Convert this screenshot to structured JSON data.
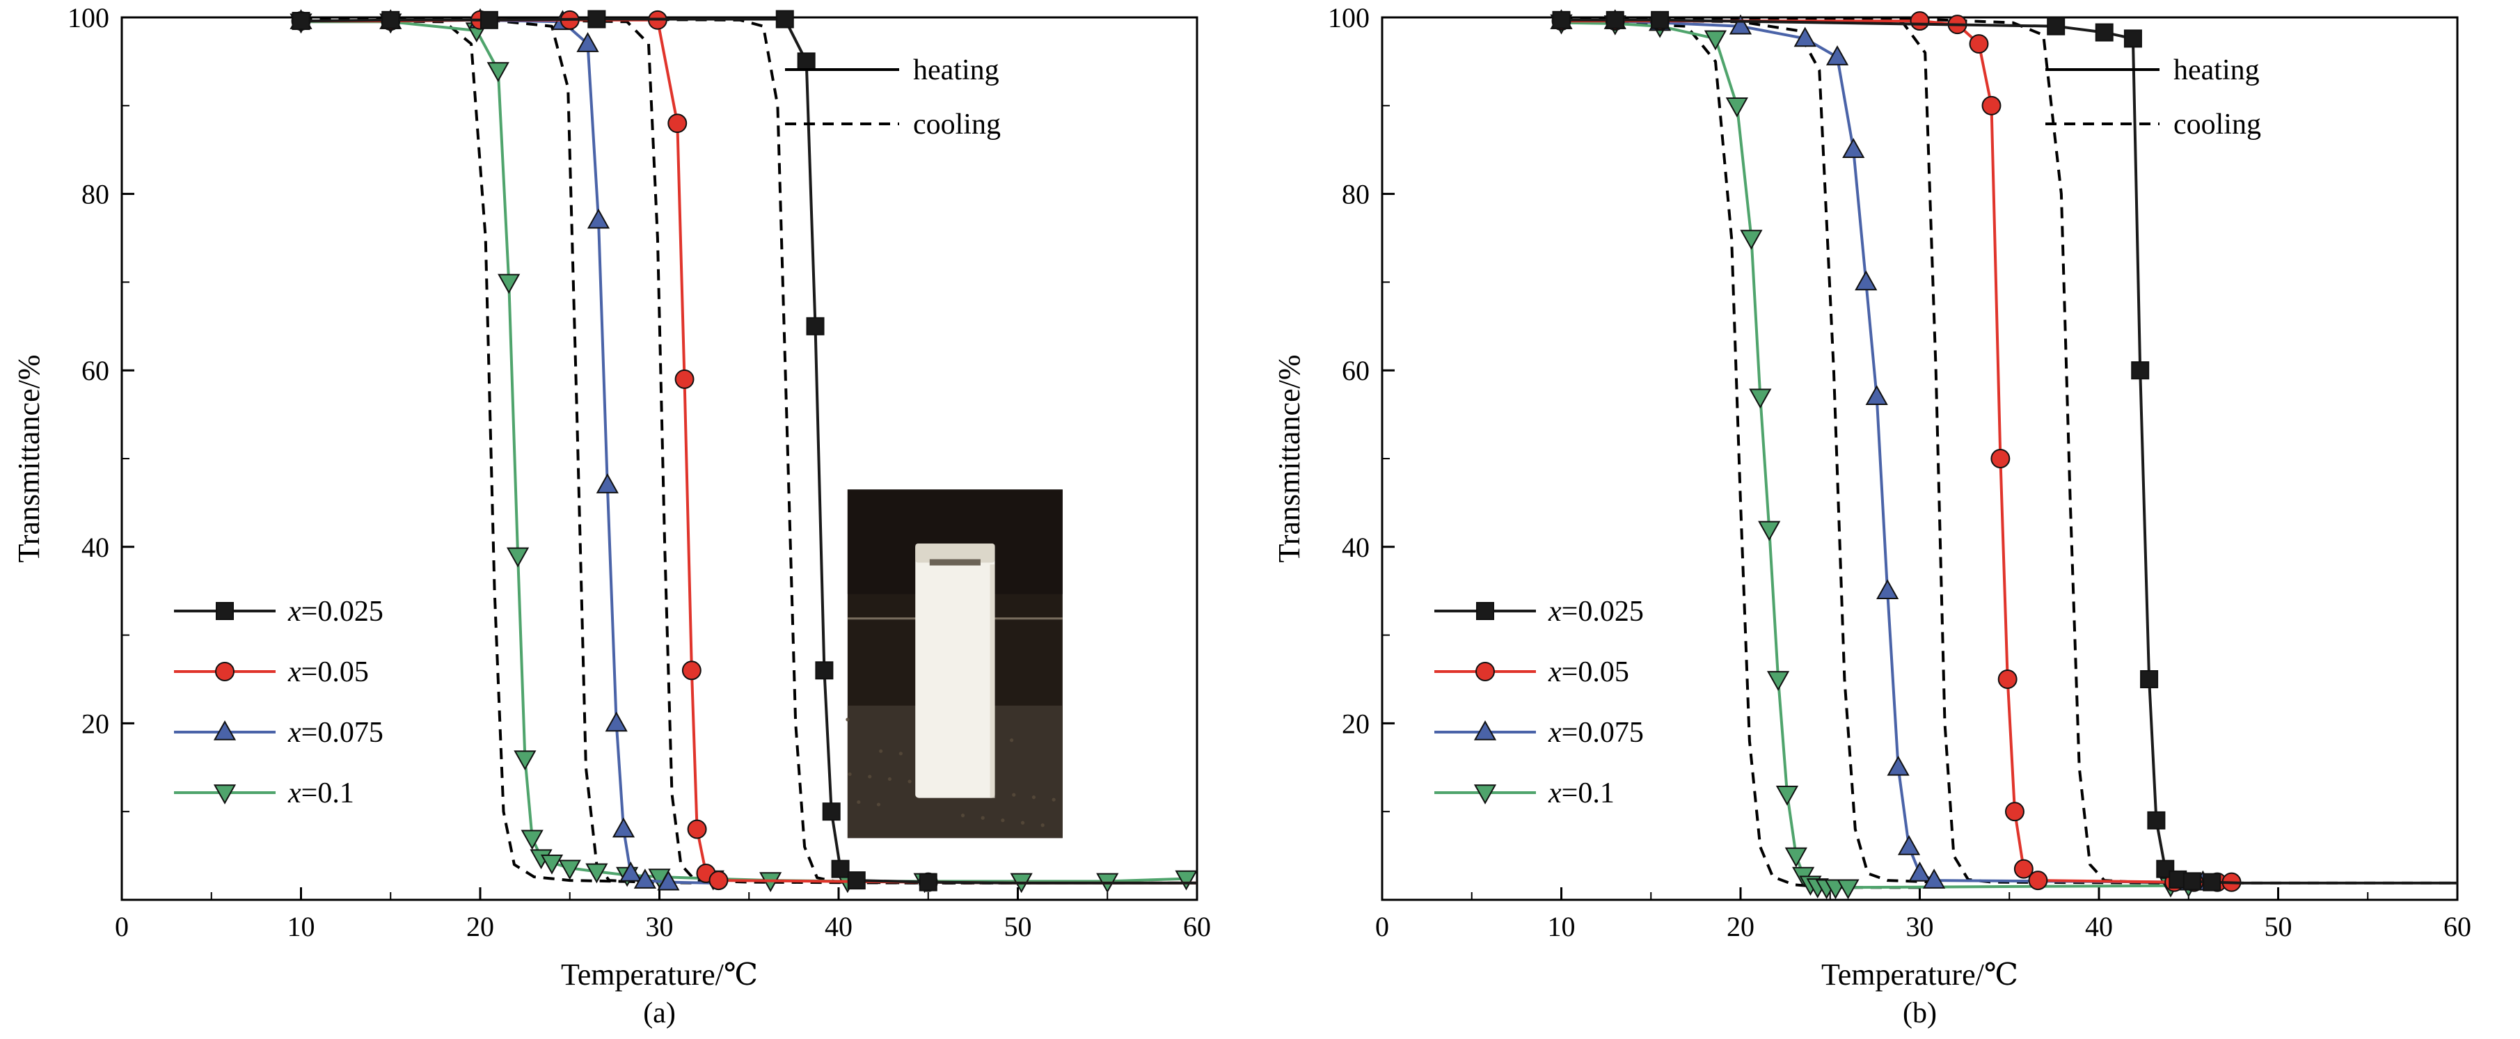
{
  "chart_data": [
    {
      "id": "a",
      "type": "line",
      "caption": "(a)",
      "xlabel": "Temperature/℃",
      "ylabel": "Transmittance/%",
      "xlim": [
        0,
        60
      ],
      "ylim": [
        0,
        100
      ],
      "xticks": [
        0,
        10,
        20,
        30,
        40,
        50,
        60
      ],
      "x_minor_step": 5,
      "yticks": [
        20,
        40,
        60,
        80,
        100
      ],
      "y_minor_step": 10,
      "line_legend": [
        {
          "label": "heating",
          "dash": false
        },
        {
          "label": "cooling",
          "dash": true
        }
      ],
      "series": [
        {
          "label": "x=0.025",
          "color": "#1a1a1a",
          "marker": "square",
          "heating": [
            [
              10,
              99.6
            ],
            [
              15,
              99.7
            ],
            [
              20.5,
              99.7
            ],
            [
              26.5,
              99.8
            ],
            [
              37,
              99.8
            ],
            [
              38.2,
              95
            ],
            [
              38.7,
              65
            ],
            [
              39.2,
              26
            ],
            [
              39.6,
              10
            ],
            [
              40.1,
              3.5
            ],
            [
              41,
              2.2
            ],
            [
              45,
              2
            ]
          ],
          "tail": [
            [
              50,
              1.9
            ],
            [
              55,
              1.9
            ],
            [
              60,
              1.9
            ]
          ],
          "cooling": [
            [
              10,
              99.8
            ],
            [
              25,
              99.8
            ],
            [
              34.5,
              99.7
            ],
            [
              35.8,
              99
            ],
            [
              36.6,
              90
            ],
            [
              37.1,
              55
            ],
            [
              37.6,
              20
            ],
            [
              38.1,
              6
            ],
            [
              38.8,
              2.5
            ],
            [
              40,
              2
            ],
            [
              45,
              1.9
            ],
            [
              60,
              1.9
            ]
          ]
        },
        {
          "label": "x=0.05",
          "color": "#e0342b",
          "marker": "circle",
          "heating": [
            [
              10,
              99.6
            ],
            [
              15,
              99.6
            ],
            [
              20,
              99.7
            ],
            [
              25,
              99.7
            ],
            [
              29.9,
              99.7
            ],
            [
              31,
              88
            ],
            [
              31.4,
              59
            ],
            [
              31.8,
              26
            ],
            [
              32.1,
              8
            ],
            [
              32.6,
              3
            ],
            [
              33.3,
              2.2
            ],
            [
              45,
              2
            ]
          ],
          "tail": [
            [
              50,
              1.9
            ],
            [
              55,
              1.9
            ],
            [
              60,
              1.9
            ]
          ],
          "cooling": [
            [
              10,
              99.8
            ],
            [
              20,
              99.8
            ],
            [
              28.2,
              99.5
            ],
            [
              29.4,
              97
            ],
            [
              29.9,
              75
            ],
            [
              30.3,
              40
            ],
            [
              30.7,
              12
            ],
            [
              31.2,
              4
            ],
            [
              32,
              2.2
            ],
            [
              35,
              2
            ],
            [
              45,
              1.9
            ],
            [
              60,
              1.9
            ]
          ]
        },
        {
          "label": "x=0.075",
          "color": "#4a63a8",
          "marker": "triangle-up",
          "heating": [
            [
              10,
              99.6
            ],
            [
              15,
              99.6
            ],
            [
              20,
              99.7
            ],
            [
              24.6,
              99.5
            ],
            [
              26,
              97
            ],
            [
              26.6,
              77
            ],
            [
              27.1,
              47
            ],
            [
              27.6,
              20
            ],
            [
              28,
              8
            ],
            [
              28.4,
              3
            ],
            [
              29.2,
              2.2
            ],
            [
              30.5,
              2
            ]
          ],
          "tail": [
            [
              33,
              1.9
            ]
          ],
          "cooling": [
            [
              10,
              99.8
            ],
            [
              20,
              99.8
            ],
            [
              24,
              99
            ],
            [
              24.9,
              92
            ],
            [
              25.4,
              55
            ],
            [
              25.9,
              15
            ],
            [
              26.5,
              4
            ],
            [
              27.2,
              2.2
            ],
            [
              29,
              2
            ],
            [
              32,
              1.9
            ]
          ]
        },
        {
          "label": "x=0.1",
          "color": "#4fa46c",
          "marker": "triangle-down",
          "heating": [
            [
              10,
              99.5
            ],
            [
              15,
              99.5
            ],
            [
              19.8,
              98.5
            ],
            [
              21,
              94
            ],
            [
              21.6,
              70
            ],
            [
              22.1,
              39
            ],
            [
              22.5,
              16
            ],
            [
              22.9,
              7
            ],
            [
              23.4,
              4.8
            ],
            [
              24,
              4.2
            ],
            [
              25,
              3.6
            ],
            [
              26.5,
              3.2
            ],
            [
              28.2,
              2.8
            ],
            [
              30,
              2.6
            ],
            [
              33,
              2.4
            ],
            [
              36.2,
              2.2
            ],
            [
              40.5,
              2.1
            ],
            [
              44.8,
              2.1
            ],
            [
              50.2,
              2.1
            ],
            [
              55,
              2.1
            ],
            [
              59.4,
              2.4
            ]
          ],
          "cooling": [
            [
              10,
              99.7
            ],
            [
              18,
              99.5
            ],
            [
              19.5,
              97
            ],
            [
              20.3,
              75
            ],
            [
              20.8,
              35
            ],
            [
              21.3,
              10
            ],
            [
              21.9,
              4
            ],
            [
              23,
              2.6
            ],
            [
              25,
              2.2
            ],
            [
              30,
              2
            ]
          ]
        }
      ],
      "inset": {
        "name": "cuvette-photo",
        "x": [
          40.5,
          52.5
        ],
        "y": [
          7,
          46.5
        ],
        "bg": "#221b15",
        "top_shade": "#191310",
        "floor": "#3a322a",
        "speckle": "#57493a",
        "bench_line": "#837768",
        "cuvette": "#f3f1ea",
        "cap": "#dcd7ca",
        "slot": "#6b6356",
        "shade": "#ddd8cb"
      }
    },
    {
      "id": "b",
      "type": "line",
      "caption": "(b)",
      "xlabel": "Temperature/℃",
      "ylabel": "Transmittance/%",
      "xlim": [
        0,
        60
      ],
      "ylim": [
        0,
        100
      ],
      "xticks": [
        0,
        10,
        20,
        30,
        40,
        50,
        60
      ],
      "x_minor_step": 5,
      "yticks": [
        20,
        40,
        60,
        80,
        100
      ],
      "y_minor_step": 10,
      "line_legend": [
        {
          "label": "heating",
          "dash": false
        },
        {
          "label": "cooling",
          "dash": true
        }
      ],
      "series": [
        {
          "label": "x=0.025",
          "color": "#1a1a1a",
          "marker": "square",
          "heating": [
            [
              10,
              99.7
            ],
            [
              13,
              99.7
            ],
            [
              15.5,
              99.7
            ],
            [
              37.6,
              99
            ],
            [
              40.3,
              98.3
            ],
            [
              41.9,
              97.6
            ],
            [
              42.3,
              60
            ],
            [
              42.8,
              25
            ],
            [
              43.2,
              9
            ],
            [
              43.7,
              3.5
            ],
            [
              44.4,
              2.3
            ],
            [
              45.2,
              2.1
            ],
            [
              46.3,
              2
            ]
          ],
          "tail": [
            [
              48,
              1.9
            ],
            [
              52,
              1.9
            ],
            [
              56,
              1.9
            ],
            [
              60,
              1.9
            ]
          ],
          "cooling": [
            [
              10,
              99.8
            ],
            [
              30,
              99.8
            ],
            [
              35.2,
              99.4
            ],
            [
              36.9,
              98
            ],
            [
              37.9,
              80
            ],
            [
              38.4,
              45
            ],
            [
              38.9,
              15
            ],
            [
              39.5,
              4
            ],
            [
              40.3,
              2.2
            ],
            [
              42,
              2
            ],
            [
              46,
              1.9
            ],
            [
              60,
              1.9
            ]
          ]
        },
        {
          "label": "x=0.05",
          "color": "#e0342b",
          "marker": "circle",
          "heating": [
            [
              10,
              99.6
            ],
            [
              13,
              99.6
            ],
            [
              15.5,
              99.6
            ],
            [
              30,
              99.6
            ],
            [
              32.1,
              99.2
            ],
            [
              33.3,
              97
            ],
            [
              34,
              90
            ],
            [
              34.5,
              50
            ],
            [
              34.9,
              25
            ],
            [
              35.3,
              10
            ],
            [
              35.8,
              3.5
            ],
            [
              36.6,
              2.2
            ],
            [
              44.2,
              2
            ],
            [
              45.3,
              2
            ],
            [
              46.6,
              2
            ],
            [
              47.4,
              2
            ]
          ],
          "cooling": [
            [
              10,
              99.8
            ],
            [
              25,
              99.8
            ],
            [
              29.1,
              99.3
            ],
            [
              30.3,
              96
            ],
            [
              30.9,
              60
            ],
            [
              31.4,
              20
            ],
            [
              31.9,
              5
            ],
            [
              32.7,
              2.3
            ],
            [
              34,
              2
            ],
            [
              45,
              1.9
            ]
          ]
        },
        {
          "label": "x=0.075",
          "color": "#4a63a8",
          "marker": "triangle-up",
          "heating": [
            [
              10,
              99.6
            ],
            [
              13,
              99.6
            ],
            [
              15.5,
              99.4
            ],
            [
              20,
              99
            ],
            [
              23.6,
              97.6
            ],
            [
              25.4,
              95.5
            ],
            [
              26.3,
              85
            ],
            [
              27,
              70
            ],
            [
              27.6,
              57
            ],
            [
              28.2,
              35
            ],
            [
              28.8,
              15
            ],
            [
              29.4,
              6
            ],
            [
              30,
              3
            ],
            [
              30.8,
              2.2
            ],
            [
              44.6,
              2
            ],
            [
              45.8,
              2
            ]
          ],
          "cooling": [
            [
              10,
              99.8
            ],
            [
              20,
              99.5
            ],
            [
              23.2,
              98.5
            ],
            [
              24.4,
              94
            ],
            [
              25.2,
              60
            ],
            [
              25.8,
              25
            ],
            [
              26.4,
              8
            ],
            [
              27.1,
              3
            ],
            [
              28.2,
              2.2
            ],
            [
              31,
              2
            ]
          ]
        },
        {
          "label": "x=0.1",
          "color": "#4fa46c",
          "marker": "triangle-down",
          "heating": [
            [
              10,
              99.4
            ],
            [
              13,
              99.3
            ],
            [
              15.5,
              99
            ],
            [
              18.6,
              97.6
            ],
            [
              19.8,
              90
            ],
            [
              20.6,
              75
            ],
            [
              21.1,
              57
            ],
            [
              21.6,
              42
            ],
            [
              22.1,
              25
            ],
            [
              22.6,
              12
            ],
            [
              23.1,
              5
            ],
            [
              23.5,
              2.8
            ],
            [
              23.9,
              1.8
            ],
            [
              24.3,
              1.5
            ],
            [
              24.8,
              1.4
            ],
            [
              25.3,
              1.4
            ],
            [
              26,
              1.4
            ],
            [
              44,
              1.6
            ],
            [
              45,
              1.6
            ]
          ],
          "cooling": [
            [
              10,
              99.6
            ],
            [
              17,
              99
            ],
            [
              18.6,
              95
            ],
            [
              19.5,
              75
            ],
            [
              20,
              45
            ],
            [
              20.5,
              18
            ],
            [
              21.1,
              6
            ],
            [
              21.8,
              2.6
            ],
            [
              23,
              1.7
            ],
            [
              25,
              1.4
            ],
            [
              30,
              1.4
            ]
          ]
        }
      ]
    }
  ]
}
